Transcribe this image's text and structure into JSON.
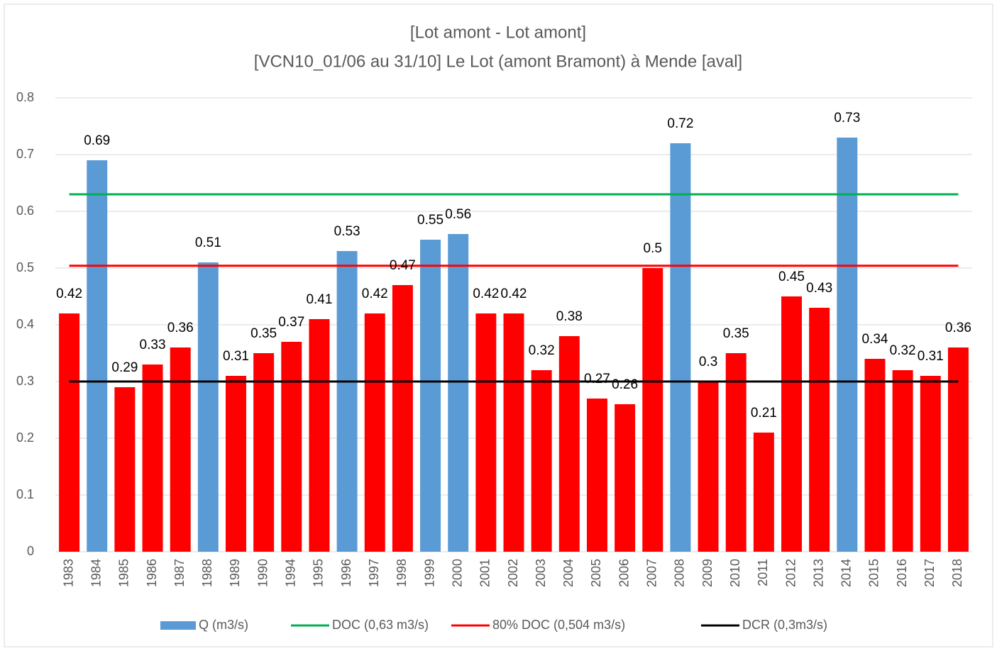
{
  "chart_data": {
    "type": "bar",
    "title": "[Lot amont - Lot amont]",
    "subtitle": "[VCN10_01/06 au 31/10] Le Lot (amont Bramont) à Mende [aval]",
    "categories": [
      "1983",
      "1984",
      "1985",
      "1986",
      "1987",
      "1988",
      "1989",
      "1990",
      "1994",
      "1995",
      "1996",
      "1997",
      "1998",
      "1999",
      "2000",
      "2001",
      "2002",
      "2003",
      "2004",
      "2005",
      "2006",
      "2007",
      "2008",
      "2009",
      "2010",
      "2011",
      "2012",
      "2013",
      "2014",
      "2015",
      "2016",
      "2017",
      "2018"
    ],
    "series": [
      {
        "name": "Q (m3/s)",
        "color": "#5b9bd5",
        "values": [
          0.42,
          0.69,
          0.29,
          0.33,
          0.36,
          0.51,
          0.31,
          0.35,
          0.37,
          0.41,
          0.53,
          0.42,
          0.47,
          0.55,
          0.56,
          0.42,
          0.42,
          0.32,
          0.38,
          0.27,
          0.26,
          0.5,
          0.72,
          0.3,
          0.35,
          0.21,
          0.45,
          0.43,
          0.73,
          0.34,
          0.32,
          0.31,
          0.36
        ],
        "colors": [
          "#ff0000",
          "#5b9bd5",
          "#ff0000",
          "#ff0000",
          "#ff0000",
          "#5b9bd5",
          "#ff0000",
          "#ff0000",
          "#ff0000",
          "#ff0000",
          "#5b9bd5",
          "#ff0000",
          "#ff0000",
          "#5b9bd5",
          "#5b9bd5",
          "#ff0000",
          "#ff0000",
          "#ff0000",
          "#ff0000",
          "#ff0000",
          "#ff0000",
          "#ff0000",
          "#5b9bd5",
          "#ff0000",
          "#ff0000",
          "#ff0000",
          "#ff0000",
          "#ff0000",
          "#5b9bd5",
          "#ff0000",
          "#ff0000",
          "#ff0000",
          "#ff0000"
        ]
      }
    ],
    "reference_lines": [
      {
        "name": "DOC (0,63 m3/s)",
        "value": 0.63,
        "color": "#00b050"
      },
      {
        "name": "80% DOC (0,504 m3/s)",
        "value": 0.504,
        "color": "#ff0000"
      },
      {
        "name": "DCR (0,3m3/s)",
        "value": 0.3,
        "color": "#000000"
      }
    ],
    "ylim": [
      0,
      0.8
    ],
    "yticks": [
      0,
      0.1,
      0.2,
      0.3,
      0.4,
      0.5,
      0.6,
      0.7,
      0.8
    ],
    "grid": true
  }
}
